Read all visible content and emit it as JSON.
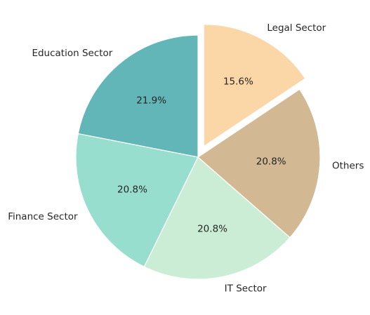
{
  "chart_data": {
    "type": "pie",
    "title": "",
    "start_angle_deg": 90,
    "direction": "counterclockwise",
    "slices": [
      {
        "label": "Education Sector",
        "value": 21.9,
        "pct_label": "21.9%",
        "color": "#62b6b7",
        "explode": 0
      },
      {
        "label": "Finance Sector",
        "value": 20.8,
        "pct_label": "20.8%",
        "color": "#97dece",
        "explode": 0
      },
      {
        "label": "IT Sector",
        "value": 20.8,
        "pct_label": "20.8%",
        "color": "#cbedd5",
        "explode": 0
      },
      {
        "label": "Others",
        "value": 20.8,
        "pct_label": "20.8%",
        "color": "#d2b994",
        "explode": 0
      },
      {
        "label": "Legal Sector",
        "value": 15.6,
        "pct_label": "15.6%",
        "color": "#fbd6a6",
        "explode": 0.1
      }
    ]
  }
}
